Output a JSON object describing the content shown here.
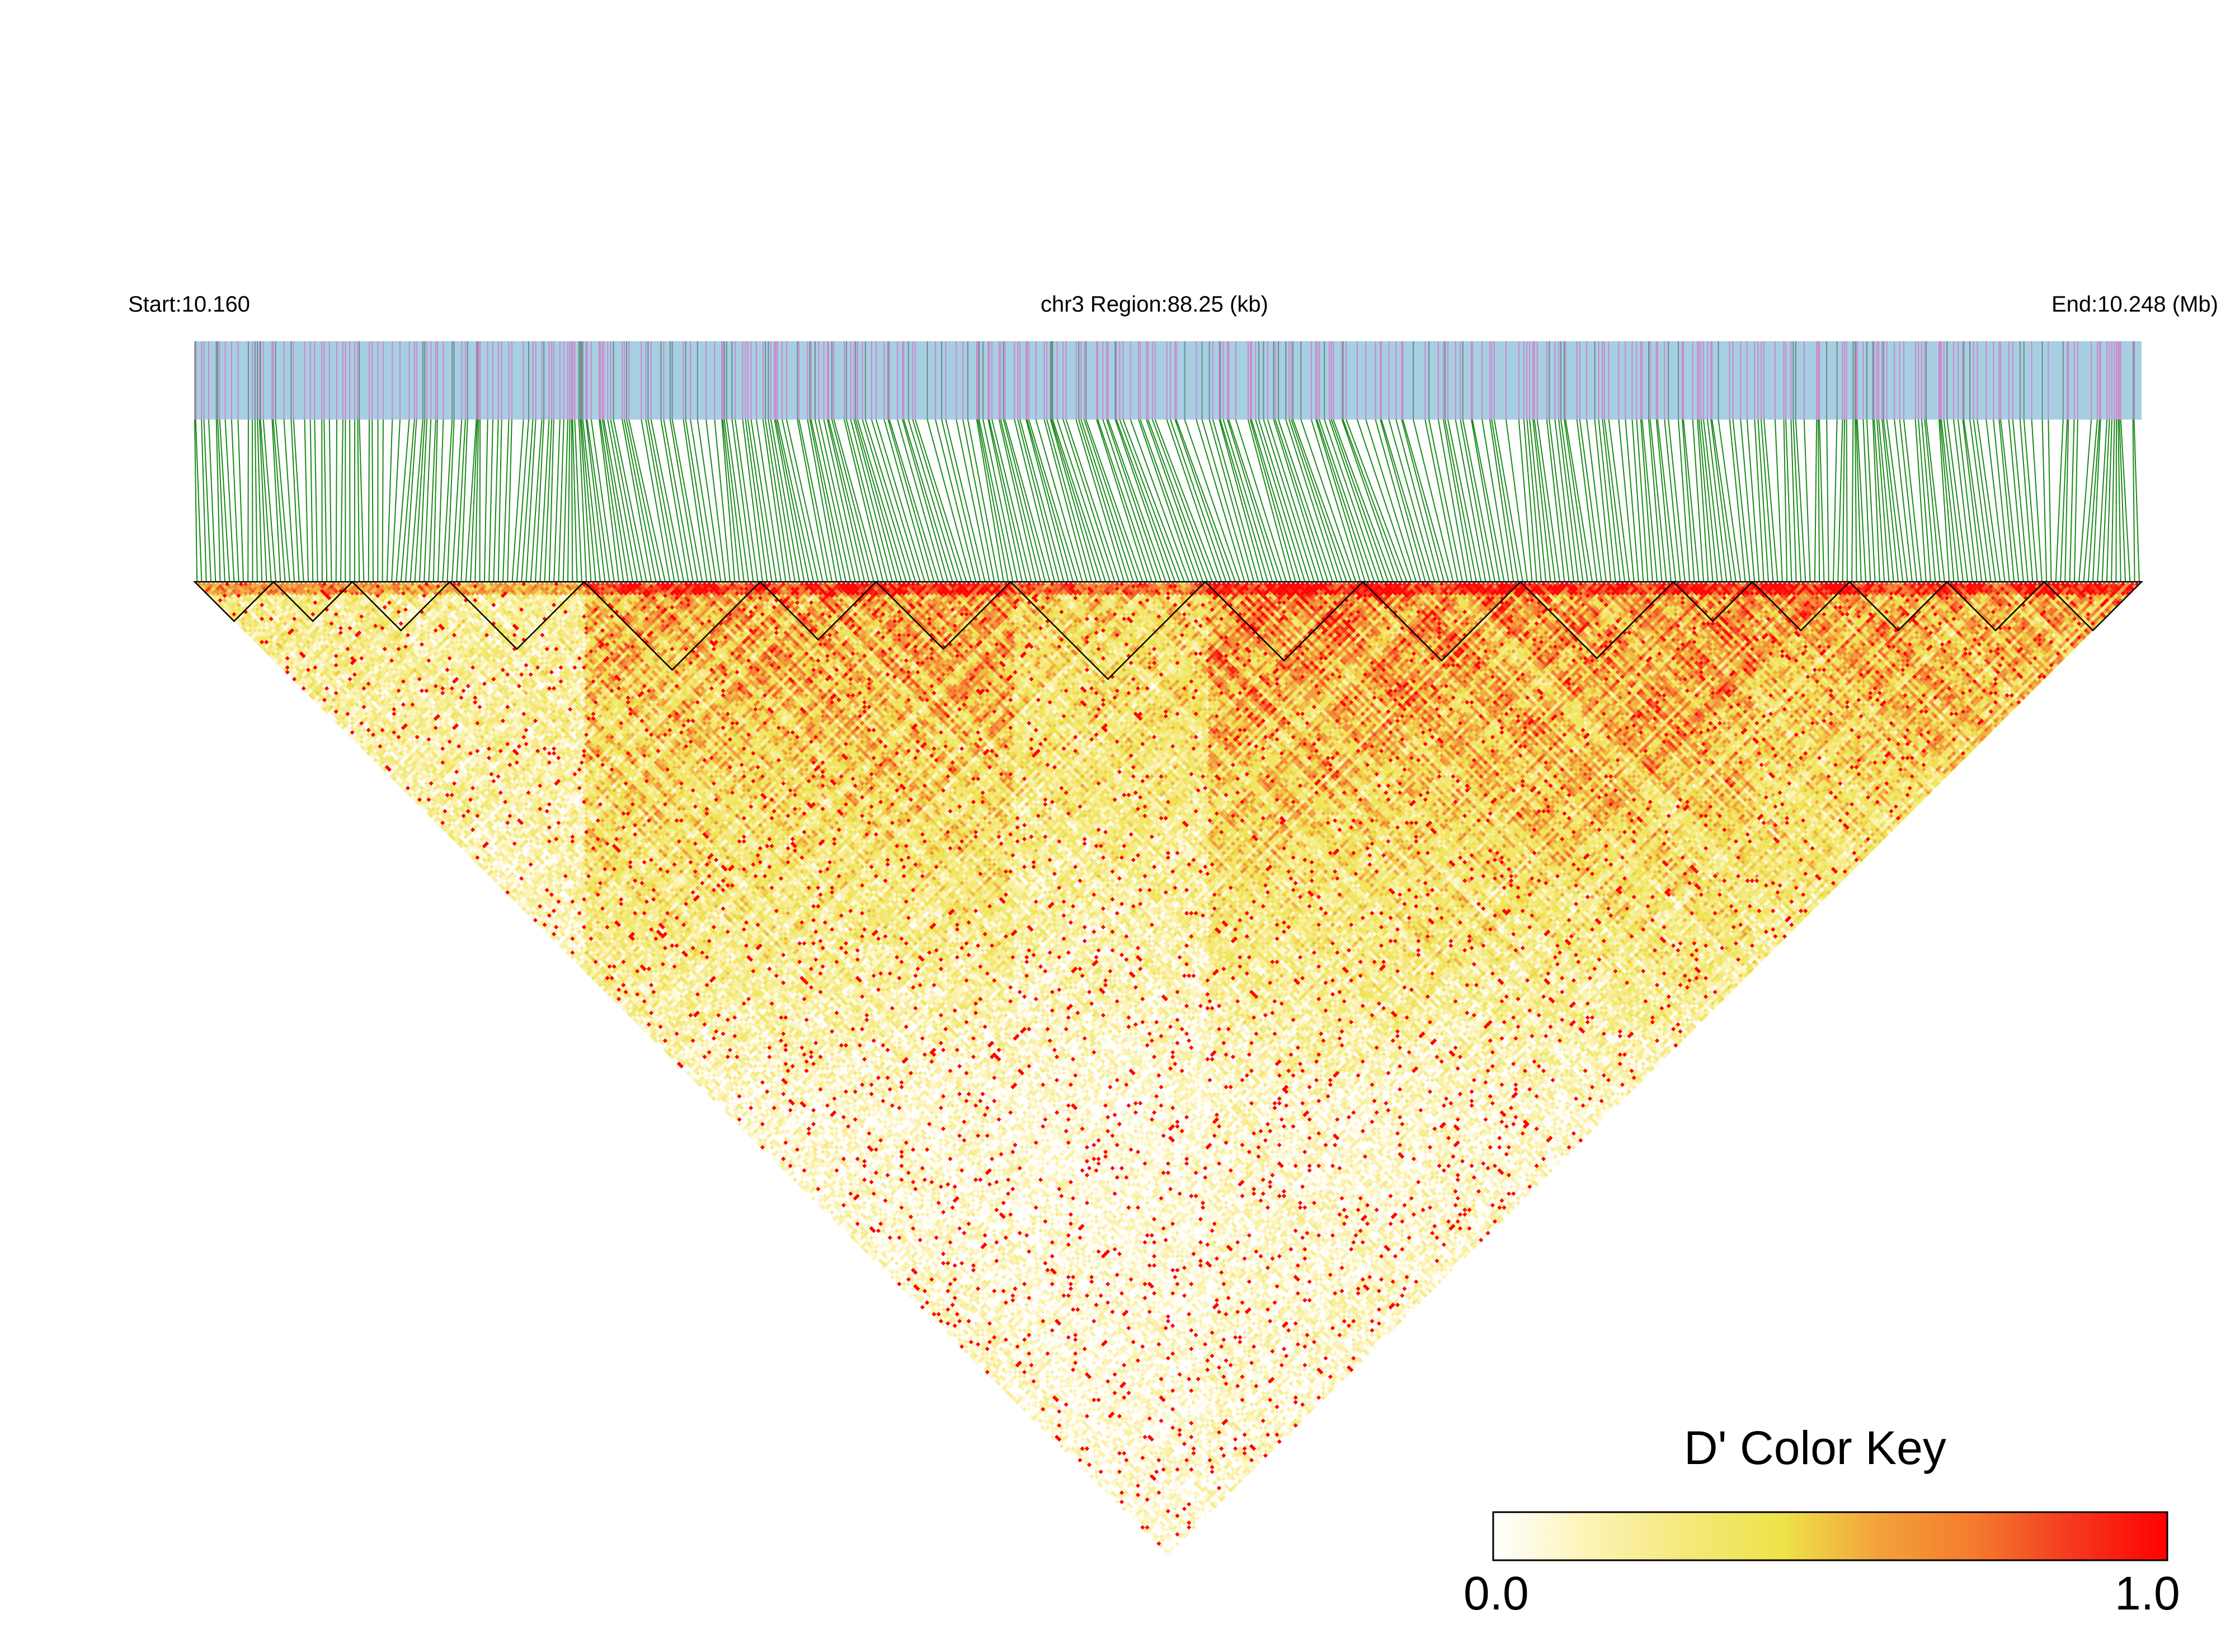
{
  "chart_data": {
    "type": "heatmap",
    "subtype": "ld-triangle",
    "start_label": "Start:10.160",
    "region_label": "chr3 Region:88.25 (kb)",
    "end_label": "End:10.248 (Mb)",
    "chromosome": "chr3",
    "start_mb": 10.16,
    "end_mb": 10.248,
    "region_kb": 88.25,
    "n_snps": 420,
    "metric": "D'",
    "color_key": {
      "title": "D' Color Key",
      "min_label": "0.0",
      "max_label": "1.0",
      "min": 0.0,
      "max": 1.0,
      "colors": [
        "#ffffff",
        "#fdf3b5",
        "#f4e87a",
        "#eee34a",
        "#f2a23c",
        "#f57a2e",
        "#f43a1f",
        "#ff0000"
      ]
    },
    "track_colors": {
      "background": "#a6cfe2",
      "snp_tick_pink": "#cc88cc",
      "snp_tick_gray": "#6e8a8a",
      "connector": "#1a8a1a",
      "block_outline": "#000000"
    },
    "high_ld_blocks_fraction": [
      [
        0.0,
        0.04
      ],
      [
        0.04,
        0.08
      ],
      [
        0.08,
        0.13
      ],
      [
        0.13,
        0.2
      ],
      [
        0.2,
        0.29
      ],
      [
        0.29,
        0.35
      ],
      [
        0.35,
        0.42
      ],
      [
        0.42,
        0.52
      ],
      [
        0.52,
        0.6
      ],
      [
        0.6,
        0.68
      ],
      [
        0.68,
        0.76
      ],
      [
        0.76,
        0.8
      ],
      [
        0.8,
        0.85
      ],
      [
        0.85,
        0.9
      ],
      [
        0.9,
        0.95
      ],
      [
        0.95,
        1.0
      ]
    ],
    "regional_mean_d_prime": [
      {
        "range": [
          0.0,
          0.2
        ],
        "mean": 0.35
      },
      {
        "range": [
          0.2,
          0.42
        ],
        "mean": 0.8
      },
      {
        "range": [
          0.42,
          0.52
        ],
        "mean": 0.55
      },
      {
        "range": [
          0.52,
          0.8
        ],
        "mean": 0.88
      },
      {
        "range": [
          0.8,
          1.0
        ],
        "mean": 0.75
      }
    ]
  }
}
